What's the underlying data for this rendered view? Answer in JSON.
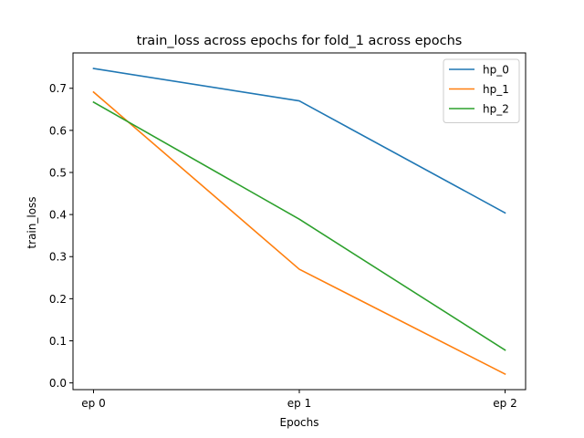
{
  "chart_data": {
    "type": "line",
    "title": "train_loss across epochs for fold_1 across epochs",
    "xlabel": "Epochs",
    "ylabel": "train_loss",
    "categories": [
      "ep 0",
      "ep 1",
      "ep 2"
    ],
    "ylim": [
      -0.016,
      0.784
    ],
    "yticks": [
      "0.0",
      "0.1",
      "0.2",
      "0.3",
      "0.4",
      "0.5",
      "0.6",
      "0.7"
    ],
    "grid": false,
    "legend_position": "top-right",
    "series": [
      {
        "name": "hp_0",
        "color": "#1f77b4",
        "values": [
          0.747,
          0.67,
          0.404
        ]
      },
      {
        "name": "hp_1",
        "color": "#ff7f0e",
        "values": [
          0.691,
          0.27,
          0.021
        ]
      },
      {
        "name": "hp_2",
        "color": "#2ca02c",
        "values": [
          0.667,
          0.389,
          0.078
        ]
      }
    ]
  }
}
